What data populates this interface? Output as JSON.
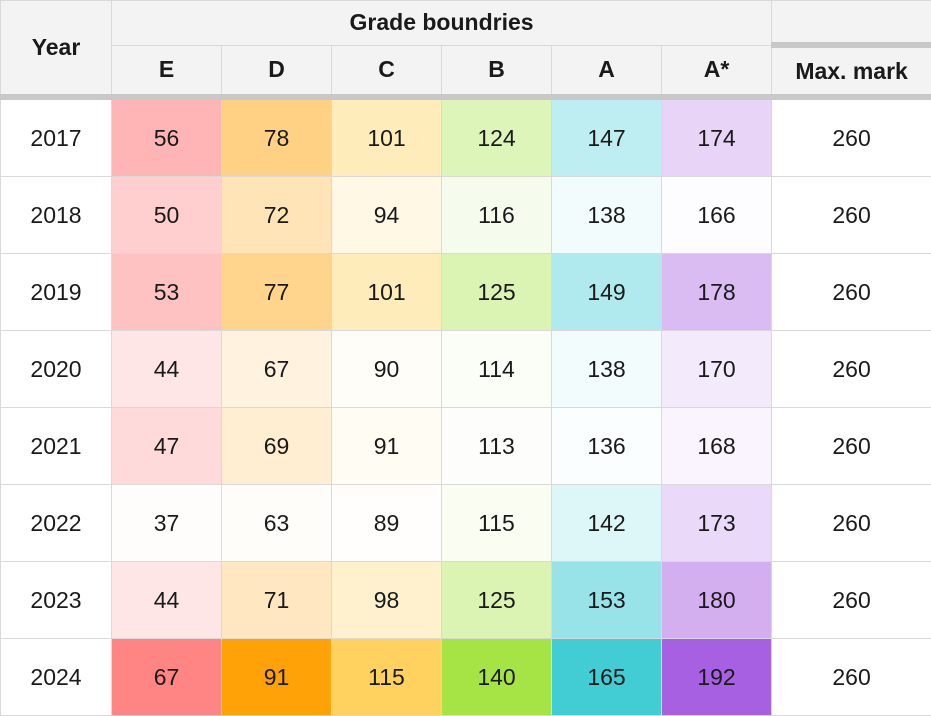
{
  "header": {
    "year": "Year",
    "group": "Grade boundries",
    "max": "Max. mark"
  },
  "chart_data": {
    "type": "table",
    "title": "",
    "columns": [
      "E",
      "D",
      "C",
      "B",
      "A",
      "A*"
    ],
    "base_colors": [
      "#ff8080",
      "#ff9f00",
      "#ffd15a",
      "#a3e33f",
      "#3ccbd4",
      "#a45be0"
    ],
    "rows": [
      {
        "year": "2017",
        "values": [
          56,
          78,
          101,
          124,
          147,
          174
        ],
        "max": 260
      },
      {
        "year": "2018",
        "values": [
          50,
          72,
          94,
          116,
          138,
          166
        ],
        "max": 260
      },
      {
        "year": "2019",
        "values": [
          53,
          77,
          101,
          125,
          149,
          178
        ],
        "max": 260
      },
      {
        "year": "2020",
        "values": [
          44,
          67,
          90,
          114,
          138,
          170
        ],
        "max": 260
      },
      {
        "year": "2021",
        "values": [
          47,
          69,
          91,
          113,
          136,
          168
        ],
        "max": 260
      },
      {
        "year": "2022",
        "values": [
          37,
          63,
          89,
          115,
          142,
          173
        ],
        "max": 260
      },
      {
        "year": "2023",
        "values": [
          44,
          71,
          98,
          125,
          153,
          180
        ],
        "max": 260
      },
      {
        "year": "2024",
        "values": [
          67,
          91,
          115,
          140,
          165,
          192
        ],
        "max": 260
      }
    ]
  }
}
